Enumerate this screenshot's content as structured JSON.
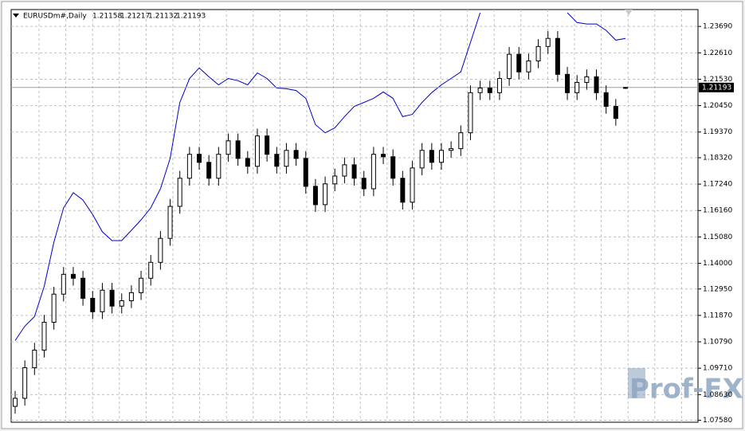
{
  "chart_data": {
    "type": "candlestick",
    "title": "EURUSDm#,Daily",
    "open": [
      1.0815,
      1.0848,
      1.0973,
      1.1045,
      1.1159,
      1.1274,
      1.1355,
      1.1339,
      1.1257,
      1.1202,
      1.129,
      1.1225,
      1.1247,
      1.128,
      1.1339,
      1.1404,
      1.1502,
      1.1633,
      1.1748,
      1.1846,
      1.1813,
      1.1748,
      1.1846,
      1.1901,
      1.1829,
      1.1797,
      1.1921,
      1.1846,
      1.1797,
      1.1862,
      1.1829,
      1.1715,
      1.164,
      1.1725,
      1.1757,
      1.1803,
      1.1748,
      1.1705,
      1.1846,
      1.1836,
      1.1748,
      1.165,
      1.179,
      1.1862,
      1.1813,
      1.1862,
      1.1869,
      1.1934,
      1.2098,
      1.2117,
      1.2098,
      1.2156,
      1.2255,
      1.2183,
      1.2228,
      1.2287,
      1.232,
      1.2173,
      1.2098,
      1.214,
      1.2163,
      1.2098,
      1.2042,
      1.21158
    ],
    "high": [
      1.0878,
      1.1003,
      1.1075,
      1.1189,
      1.1304,
      1.1385,
      1.1385,
      1.1369,
      1.1287,
      1.132,
      1.132,
      1.1277,
      1.131,
      1.1369,
      1.1434,
      1.1532,
      1.1663,
      1.1778,
      1.1876,
      1.1876,
      1.1843,
      1.1876,
      1.1931,
      1.1931,
      1.1859,
      1.1951,
      1.1951,
      1.1876,
      1.1892,
      1.1892,
      1.1859,
      1.1745,
      1.1755,
      1.1787,
      1.1833,
      1.1833,
      1.1778,
      1.1876,
      1.1876,
      1.1866,
      1.1778,
      1.182,
      1.1892,
      1.1892,
      1.1892,
      1.1899,
      1.1964,
      1.2128,
      1.2147,
      1.2147,
      1.2186,
      1.2285,
      1.2285,
      1.2258,
      1.2317,
      1.235,
      1.235,
      1.2203,
      1.217,
      1.2193,
      1.2193,
      1.2128,
      1.2072,
      1.21217
    ],
    "low": [
      1.0785,
      1.0818,
      1.0943,
      1.1015,
      1.1129,
      1.1244,
      1.1309,
      1.1227,
      1.1172,
      1.1172,
      1.1195,
      1.1195,
      1.1217,
      1.125,
      1.1309,
      1.1374,
      1.1472,
      1.1603,
      1.1718,
      1.1783,
      1.1718,
      1.1718,
      1.1816,
      1.1799,
      1.1767,
      1.1767,
      1.1816,
      1.1767,
      1.1767,
      1.1799,
      1.1685,
      1.161,
      1.161,
      1.1695,
      1.1727,
      1.1718,
      1.1675,
      1.1675,
      1.1806,
      1.1718,
      1.162,
      1.162,
      1.176,
      1.1783,
      1.1783,
      1.1832,
      1.1839,
      1.1904,
      1.2068,
      1.2068,
      1.2068,
      1.2126,
      1.2153,
      1.2153,
      1.2198,
      1.2257,
      1.2143,
      1.2068,
      1.2068,
      1.211,
      1.2068,
      1.2012,
      1.1963,
      1.21132
    ],
    "close": [
      1.0848,
      1.0973,
      1.1045,
      1.1159,
      1.1274,
      1.1355,
      1.1339,
      1.1257,
      1.1202,
      1.129,
      1.1225,
      1.1247,
      1.128,
      1.1339,
      1.1404,
      1.1502,
      1.1633,
      1.1748,
      1.1846,
      1.1813,
      1.1748,
      1.1846,
      1.1901,
      1.1829,
      1.1797,
      1.1921,
      1.1846,
      1.1797,
      1.1862,
      1.1829,
      1.1715,
      1.164,
      1.1725,
      1.1757,
      1.1803,
      1.1748,
      1.1705,
      1.1846,
      1.1836,
      1.1748,
      1.165,
      1.179,
      1.1862,
      1.1813,
      1.1862,
      1.1869,
      1.1934,
      1.2098,
      1.2117,
      1.2098,
      1.2156,
      1.2255,
      1.2183,
      1.2228,
      1.2287,
      1.232,
      1.2173,
      1.2098,
      1.214,
      1.2163,
      1.2098,
      1.2042,
      1.1993,
      1.21193
    ],
    "line": {
      "color": "#0000cc",
      "values": [
        1.1084,
        1.1143,
        1.1182,
        1.1306,
        1.1486,
        1.1627,
        1.1689,
        1.1659,
        1.16,
        1.1529,
        1.1493,
        1.1493,
        1.1535,
        1.1578,
        1.1627,
        1.1705,
        1.1829,
        1.2058,
        1.2156,
        1.2199,
        1.2163,
        1.213,
        1.2156,
        1.2147,
        1.213,
        1.2179,
        1.2156,
        1.2117,
        1.2114,
        1.2107,
        1.2075,
        1.1967,
        1.1934,
        1.1954,
        1.2,
        1.2042,
        1.2058,
        1.2075,
        1.2101,
        1.2075,
        1.2,
        1.2009,
        1.2058,
        1.2098,
        1.213,
        1.2156,
        1.2183,
        1.2304,
        1.2425,
        null,
        null,
        null,
        null,
        null,
        null,
        null,
        null,
        1.2425,
        1.2385,
        1.2379,
        1.2379,
        1.2353,
        1.2313,
        1.232
      ]
    },
    "bull_color": "#ffffff",
    "bear_color": "#000000",
    "ylim": [
      1.075,
      1.2438
    ],
    "yticks": [
      {
        "value": 1.2369,
        "label": "1.23690"
      },
      {
        "value": 1.2261,
        "label": "1.22610"
      },
      {
        "value": 1.2153,
        "label": "1.21530"
      },
      {
        "value": 1.2045,
        "label": "1.20450"
      },
      {
        "value": 1.1937,
        "label": "1.19370"
      },
      {
        "value": 1.1832,
        "label": "1.18320"
      },
      {
        "value": 1.1724,
        "label": "1.17240"
      },
      {
        "value": 1.1616,
        "label": "1.16160"
      },
      {
        "value": 1.1508,
        "label": "1.15080"
      },
      {
        "value": 1.14,
        "label": "1.14000"
      },
      {
        "value": 1.1295,
        "label": "1.12950"
      },
      {
        "value": 1.1187,
        "label": "1.11870"
      },
      {
        "value": 1.1079,
        "label": "1.10790"
      },
      {
        "value": 1.0971,
        "label": "1.09710"
      },
      {
        "value": 1.0863,
        "label": "1.08630"
      },
      {
        "value": 1.0758,
        "label": "1.07580"
      }
    ],
    "grid": true
  },
  "watermark": "Prof-FX"
}
